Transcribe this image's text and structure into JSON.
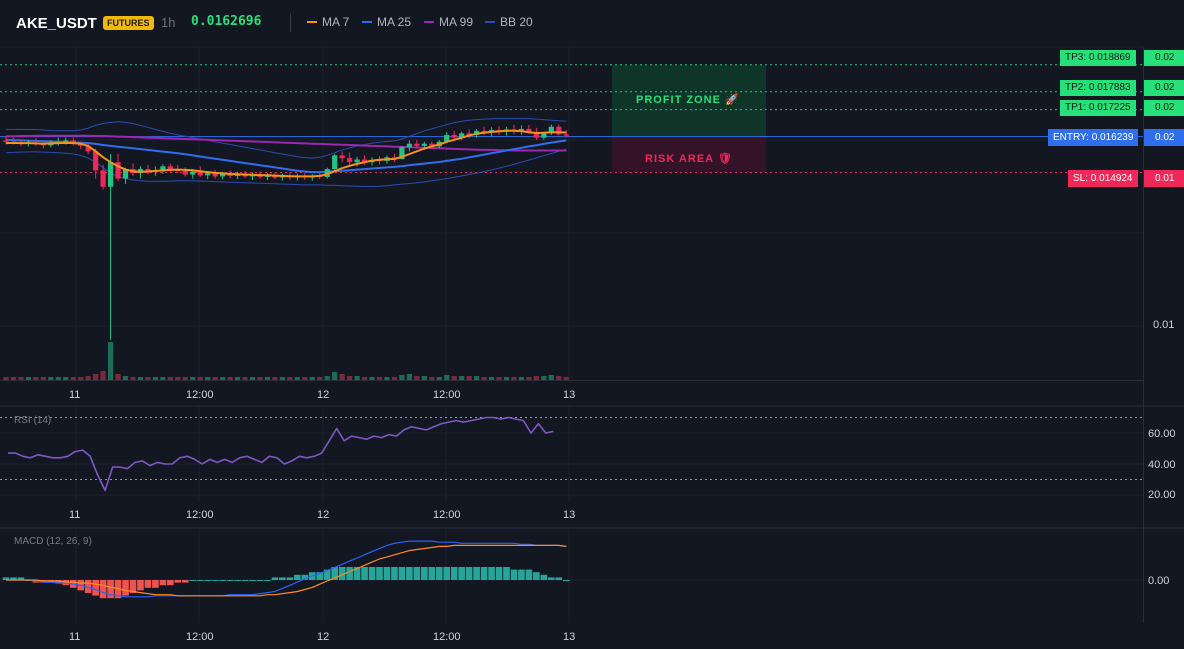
{
  "header": {
    "symbol": "AKE_USDT",
    "badge": "FUTURES",
    "interval": "1h",
    "price": "0.0162696",
    "legend": [
      {
        "label": "MA 7",
        "color": "#f7931a"
      },
      {
        "label": "MA 25",
        "color": "#2f6fed"
      },
      {
        "label": "MA 99",
        "color": "#9c27b0"
      },
      {
        "label": "BB 20",
        "color": "#2a4bb0"
      }
    ]
  },
  "levels": {
    "tp3": {
      "label": "TP3: 0.018869",
      "pct": "0.02"
    },
    "tp2": {
      "label": "TP2: 0.017883",
      "pct": "0.02"
    },
    "tp1": {
      "label": "TP1: 0.017225",
      "pct": "0.02"
    },
    "entry": {
      "label": "ENTRY: 0.016239",
      "pct": "0.02"
    },
    "sl": {
      "label": "SL: 0.014924",
      "pct": "0.01"
    }
  },
  "zones": {
    "profit": "PROFIT ZONE 🚀",
    "risk": "RISK AREA 🛡"
  },
  "colors": {
    "up": "#26c281",
    "down": "#f0285a",
    "bg": "#131722"
  },
  "price_axis": {
    "tick": "0.01"
  },
  "x_axis": [
    "11",
    "12:00",
    "12",
    "12:00",
    "13"
  ],
  "rsi": {
    "title": "RSI (14)",
    "ticks": [
      "60.00",
      "40.00",
      "20.00"
    ]
  },
  "macd": {
    "title": "MACD (12, 26, 9)",
    "ticks": [
      "0.00"
    ]
  },
  "chart_data": [
    {
      "type": "candlestick",
      "title": "AKE_USDT 1h",
      "levels": {
        "tp3": 0.018869,
        "tp2": 0.017883,
        "tp1": 0.017225,
        "entry": 0.016239,
        "sl": 0.014924
      },
      "ohlc": [
        [
          0.0161,
          0.01625,
          0.01595,
          0.01605
        ],
        [
          0.01605,
          0.0162,
          0.01595,
          0.016
        ],
        [
          0.016,
          0.01612,
          0.01588,
          0.01598
        ],
        [
          0.01598,
          0.01612,
          0.01588,
          0.01602
        ],
        [
          0.01602,
          0.01618,
          0.0159,
          0.01596
        ],
        [
          0.01596,
          0.01606,
          0.0158,
          0.01592
        ],
        [
          0.01592,
          0.0161,
          0.01585,
          0.016
        ],
        [
          0.016,
          0.0162,
          0.0159,
          0.01605
        ],
        [
          0.01605,
          0.0162,
          0.01595,
          0.0161
        ],
        [
          0.0161,
          0.0162,
          0.01592,
          0.01598
        ],
        [
          0.01598,
          0.01606,
          0.01578,
          0.0159
        ],
        [
          0.0159,
          0.016,
          0.0156,
          0.0157
        ],
        [
          0.0157,
          0.0158,
          0.0147,
          0.015
        ],
        [
          0.015,
          0.0152,
          0.0143,
          0.0144
        ],
        [
          0.0144,
          0.0156,
          0.0088,
          0.0153
        ],
        [
          0.0153,
          0.0156,
          0.0146,
          0.0147
        ],
        [
          0.0147,
          0.0151,
          0.0145,
          0.01505
        ],
        [
          0.01505,
          0.01525,
          0.0148,
          0.0149
        ],
        [
          0.0149,
          0.01515,
          0.0147,
          0.01505
        ],
        [
          0.01505,
          0.0152,
          0.01485,
          0.01495
        ],
        [
          0.01495,
          0.01515,
          0.0148,
          0.015
        ],
        [
          0.015,
          0.01522,
          0.01488,
          0.01515
        ],
        [
          0.01515,
          0.01525,
          0.01495,
          0.01505
        ],
        [
          0.01505,
          0.0152,
          0.0149,
          0.01498
        ],
        [
          0.01498,
          0.01512,
          0.01478,
          0.01485
        ],
        [
          0.01485,
          0.01505,
          0.0147,
          0.01495
        ],
        [
          0.01495,
          0.01515,
          0.01475,
          0.01482
        ],
        [
          0.01482,
          0.01498,
          0.01468,
          0.0149
        ],
        [
          0.0149,
          0.01502,
          0.0147,
          0.01478
        ],
        [
          0.01478,
          0.01495,
          0.01468,
          0.01488
        ],
        [
          0.01488,
          0.015,
          0.0147,
          0.0148
        ],
        [
          0.0148,
          0.01495,
          0.01468,
          0.01486
        ],
        [
          0.01486,
          0.01498,
          0.01472,
          0.01478
        ],
        [
          0.01478,
          0.01492,
          0.01465,
          0.01484
        ],
        [
          0.01484,
          0.01496,
          0.0147,
          0.01476
        ],
        [
          0.01476,
          0.0149,
          0.01465,
          0.01482
        ],
        [
          0.01482,
          0.01492,
          0.01468,
          0.01474
        ],
        [
          0.01474,
          0.01488,
          0.01462,
          0.0148
        ],
        [
          0.0148,
          0.01492,
          0.01466,
          0.01475
        ],
        [
          0.01475,
          0.01488,
          0.01463,
          0.01478
        ],
        [
          0.01478,
          0.0149,
          0.01465,
          0.01474
        ],
        [
          0.01474,
          0.01486,
          0.01462,
          0.0148
        ],
        [
          0.0148,
          0.01492,
          0.01468,
          0.01476
        ],
        [
          0.01476,
          0.0151,
          0.0147,
          0.01505
        ],
        [
          0.01505,
          0.0156,
          0.015,
          0.01555
        ],
        [
          0.01555,
          0.0157,
          0.0153,
          0.01545
        ],
        [
          0.01545,
          0.01565,
          0.0152,
          0.0153
        ],
        [
          0.0153,
          0.0155,
          0.01515,
          0.0154
        ],
        [
          0.0154,
          0.01555,
          0.0152,
          0.0153
        ],
        [
          0.0153,
          0.01548,
          0.01518,
          0.01538
        ],
        [
          0.01538,
          0.01552,
          0.01522,
          0.01535
        ],
        [
          0.01535,
          0.01555,
          0.01525,
          0.01548
        ],
        [
          0.01548,
          0.0156,
          0.0153,
          0.01542
        ],
        [
          0.01542,
          0.0159,
          0.0154,
          0.01585
        ],
        [
          0.01585,
          0.0161,
          0.0157,
          0.01598
        ],
        [
          0.01598,
          0.01612,
          0.0158,
          0.0159
        ],
        [
          0.0159,
          0.01605,
          0.01575,
          0.01598
        ],
        [
          0.01598,
          0.01606,
          0.0158,
          0.01588
        ],
        [
          0.01588,
          0.01612,
          0.0158,
          0.01605
        ],
        [
          0.01605,
          0.0164,
          0.016,
          0.0163
        ],
        [
          0.0163,
          0.01645,
          0.0161,
          0.0162
        ],
        [
          0.0162,
          0.01642,
          0.01612,
          0.01636
        ],
        [
          0.01636,
          0.0165,
          0.01618,
          0.0163
        ],
        [
          0.0163,
          0.01652,
          0.0162,
          0.01645
        ],
        [
          0.01645,
          0.0166,
          0.01628,
          0.0164
        ],
        [
          0.0164,
          0.01658,
          0.01625,
          0.01648
        ],
        [
          0.01648,
          0.01662,
          0.0163,
          0.01642
        ],
        [
          0.01642,
          0.0166,
          0.01628,
          0.0165
        ],
        [
          0.0165,
          0.01668,
          0.01632,
          0.01645
        ],
        [
          0.01645,
          0.01665,
          0.0163,
          0.01652
        ],
        [
          0.01652,
          0.01666,
          0.01634,
          0.0164
        ],
        [
          0.0164,
          0.01656,
          0.01612,
          0.0162
        ],
        [
          0.0162,
          0.0164,
          0.01612,
          0.01636
        ],
        [
          0.01636,
          0.01668,
          0.0163,
          0.0166
        ],
        [
          0.0166,
          0.01668,
          0.01628,
          0.01632
        ],
        [
          0.01632,
          0.01648,
          0.0162,
          0.01627
        ]
      ],
      "ma7": [
        0.016,
        0.01601,
        0.016,
        0.016,
        0.01599,
        0.01598,
        0.01599,
        0.016,
        0.01601,
        0.016,
        0.01598,
        0.0159,
        0.0157,
        0.01548,
        0.0153,
        0.01515,
        0.01503,
        0.01497,
        0.01495,
        0.01496,
        0.01498,
        0.015,
        0.01502,
        0.01503,
        0.01502,
        0.015,
        0.01497,
        0.01494,
        0.01491,
        0.01489,
        0.01487,
        0.01486,
        0.01485,
        0.01484,
        0.01483,
        0.01482,
        0.01481,
        0.0148,
        0.01479,
        0.01478,
        0.01478,
        0.01478,
        0.0148,
        0.01486,
        0.01497,
        0.01508,
        0.01517,
        0.01524,
        0.0153,
        0.01536,
        0.01539,
        0.01541,
        0.01542,
        0.0155,
        0.0156,
        0.0157,
        0.0158,
        0.01588,
        0.01595,
        0.01605,
        0.01612,
        0.0162,
        0.01628,
        0.01634,
        0.01638,
        0.01641,
        0.01643,
        0.01645,
        0.01645,
        0.01644,
        0.0164,
        0.01637,
        0.01638,
        0.0164,
        0.0164,
        0.01639
      ],
      "ma25": [
        0.01612,
        0.01611,
        0.0161,
        0.01609,
        0.01608,
        0.01607,
        0.01606,
        0.01605,
        0.01604,
        0.01603,
        0.01602,
        0.016,
        0.01597,
        0.01593,
        0.0159,
        0.01587,
        0.01584,
        0.01581,
        0.01578,
        0.01575,
        0.01572,
        0.01569,
        0.01566,
        0.01563,
        0.01559,
        0.01555,
        0.01551,
        0.01547,
        0.01543,
        0.01539,
        0.01535,
        0.01531,
        0.01527,
        0.01523,
        0.01519,
        0.01515,
        0.01511,
        0.01507,
        0.01503,
        0.01499,
        0.01496,
        0.01494,
        0.01494,
        0.01495,
        0.01497,
        0.01499,
        0.01501,
        0.01503,
        0.01505,
        0.01507,
        0.01509,
        0.01511,
        0.01513,
        0.01516,
        0.01519,
        0.01522,
        0.01525,
        0.01528,
        0.01531,
        0.01535,
        0.01539,
        0.01543,
        0.01548,
        0.01553,
        0.01558,
        0.01563,
        0.01568,
        0.01573,
        0.01578,
        0.01583,
        0.01588,
        0.01592,
        0.01597,
        0.01602,
        0.01606,
        0.0161
      ],
      "ma99": [
        0.01625,
        0.01625,
        0.01626,
        0.01626,
        0.01627,
        0.01627,
        0.01627,
        0.01627,
        0.01627,
        0.01627,
        0.01627,
        0.01627,
        0.01626,
        0.01626,
        0.01625,
        0.01624,
        0.01623,
        0.01622,
        0.01621,
        0.0162,
        0.01619,
        0.01618,
        0.01617,
        0.01616,
        0.01615,
        0.01614,
        0.01613,
        0.01612,
        0.01611,
        0.0161,
        0.01609,
        0.01608,
        0.01607,
        0.01606,
        0.01605,
        0.01604,
        0.01603,
        0.01602,
        0.01601,
        0.016,
        0.01599,
        0.01598,
        0.01597,
        0.01596,
        0.01595,
        0.01594,
        0.01593,
        0.01592,
        0.01591,
        0.0159,
        0.01589,
        0.01588,
        0.01587,
        0.01586,
        0.01585,
        0.01584,
        0.01583,
        0.01582,
        0.01581,
        0.0158,
        0.01579,
        0.01578,
        0.01577,
        0.01576,
        0.01575,
        0.01575,
        0.01574,
        0.01574,
        0.01573,
        0.01573,
        0.01573,
        0.01573,
        0.01573,
        0.01573,
        0.01573,
        0.01573
      ],
      "bb_upper": [
        0.0165,
        0.0165,
        0.0165,
        0.0165,
        0.0165,
        0.01648,
        0.01646,
        0.01645,
        0.01645,
        0.01645,
        0.01648,
        0.01655,
        0.01665,
        0.01672,
        0.01676,
        0.01678,
        0.01676,
        0.01672,
        0.01665,
        0.01658,
        0.0165,
        0.01643,
        0.01636,
        0.0163,
        0.01625,
        0.0162,
        0.01615,
        0.0161,
        0.01605,
        0.016,
        0.01595,
        0.0159,
        0.01585,
        0.0158,
        0.01575,
        0.0157,
        0.01565,
        0.0156,
        0.01555,
        0.0155,
        0.01547,
        0.01545,
        0.01548,
        0.01555,
        0.01565,
        0.01575,
        0.01583,
        0.0159,
        0.01595,
        0.016,
        0.01603,
        0.01606,
        0.01608,
        0.01615,
        0.01625,
        0.01635,
        0.01645,
        0.01652,
        0.0166,
        0.01668,
        0.01675,
        0.0168,
        0.01684,
        0.01686,
        0.01688,
        0.01689,
        0.0169,
        0.0169,
        0.0169,
        0.0169,
        0.0169,
        0.01688,
        0.01686,
        0.01684,
        0.01682,
        0.0168
      ],
      "bb_lower": [
        0.01565,
        0.01566,
        0.01567,
        0.01568,
        0.01568,
        0.01567,
        0.01566,
        0.01565,
        0.01563,
        0.0156,
        0.01555,
        0.01545,
        0.0153,
        0.0151,
        0.0149,
        0.01478,
        0.0147,
        0.01465,
        0.01462,
        0.0146,
        0.0146,
        0.0146,
        0.01461,
        0.01462,
        0.01462,
        0.01462,
        0.01461,
        0.0146,
        0.01459,
        0.01458,
        0.01457,
        0.01456,
        0.01455,
        0.01454,
        0.01453,
        0.01452,
        0.01451,
        0.0145,
        0.01449,
        0.01448,
        0.01447,
        0.01447,
        0.01447,
        0.01446,
        0.01445,
        0.01444,
        0.01443,
        0.01442,
        0.01441,
        0.01441,
        0.01442,
        0.01444,
        0.01447,
        0.0145,
        0.01452,
        0.01455,
        0.01458,
        0.01462,
        0.01466,
        0.0147,
        0.01475,
        0.0148,
        0.01485,
        0.0149,
        0.01496,
        0.01502,
        0.01508,
        0.01515,
        0.01522,
        0.0153,
        0.01538,
        0.01546,
        0.01554,
        0.01562,
        0.0157,
        0.01578
      ],
      "volume": [
        3,
        3,
        3,
        3,
        3,
        3,
        3,
        3,
        3,
        3,
        3,
        4,
        6,
        9,
        38,
        6,
        4,
        3,
        3,
        3,
        3,
        3,
        3,
        3,
        3,
        3,
        3,
        3,
        3,
        3,
        3,
        3,
        3,
        3,
        3,
        3,
        3,
        3,
        3,
        3,
        3,
        3,
        3,
        4,
        8,
        6,
        4,
        4,
        3,
        3,
        3,
        3,
        3,
        5,
        6,
        4,
        4,
        3,
        3,
        5,
        4,
        4,
        4,
        4,
        3,
        3,
        3,
        3,
        3,
        3,
        3,
        4,
        4,
        5,
        4,
        3
      ]
    },
    {
      "type": "line",
      "title": "RSI (14)",
      "ylim": [
        15,
        75
      ],
      "values": [
        47,
        47,
        45,
        44,
        46,
        45,
        44,
        44,
        45,
        48,
        49,
        45,
        33,
        23,
        38,
        38,
        37,
        41,
        42,
        39,
        41,
        40,
        40,
        44,
        45,
        43,
        40,
        43,
        41,
        43,
        41,
        44,
        45,
        43,
        41,
        45,
        44,
        40,
        42,
        45,
        44,
        45,
        47,
        55,
        63,
        55,
        58,
        57,
        56,
        58,
        57,
        59,
        58,
        62,
        64,
        63,
        62,
        64,
        66,
        67,
        68,
        67,
        68,
        69,
        70,
        70,
        69,
        70,
        69,
        68,
        60,
        66,
        60,
        61
      ]
    },
    {
      "type": "bar",
      "title": "MACD (12, 26, 9)",
      "histogram": [
        1,
        1,
        1,
        0,
        -1,
        -1,
        -1,
        -1,
        -2,
        -3,
        -4,
        -5,
        -6,
        -7,
        -7,
        -7,
        -6,
        -5,
        -4,
        -3,
        -3,
        -2,
        -2,
        -1,
        -1,
        0,
        0,
        0,
        0,
        0,
        0,
        0,
        0,
        0,
        0,
        0,
        1,
        1,
        1,
        2,
        2,
        3,
        3,
        4,
        5,
        5,
        5,
        5,
        5,
        5,
        5,
        5,
        5,
        5,
        5,
        5,
        5,
        5,
        5,
        5,
        5,
        5,
        5,
        5,
        5,
        5,
        5,
        5,
        4,
        4,
        4,
        3,
        2,
        1,
        1,
        0
      ],
      "macd": [
        0,
        0,
        0,
        0,
        -1,
        -2,
        -2,
        -3,
        -3,
        -4,
        -5,
        -7,
        -9,
        -12,
        -14,
        -15,
        -16,
        -16,
        -16,
        -16,
        -15,
        -15,
        -15,
        -15,
        -15,
        -15,
        -15,
        -15,
        -15,
        -15,
        -14,
        -14,
        -14,
        -14,
        -13,
        -12,
        -11,
        -8,
        -5,
        -2,
        1,
        4,
        6,
        9,
        12,
        15,
        18,
        21,
        24,
        27,
        30,
        33,
        35,
        36,
        37,
        37,
        37,
        37,
        36,
        36,
        36,
        35,
        35,
        35,
        35,
        35,
        35,
        35,
        35,
        34,
        34,
        33,
        33,
        33,
        33,
        32
      ],
      "signal": [
        0,
        0,
        0,
        0,
        0,
        -1,
        -1,
        -1,
        -2,
        -2,
        -3,
        -3,
        -4,
        -5,
        -7,
        -8,
        -10,
        -11,
        -12,
        -13,
        -14,
        -14,
        -14,
        -15,
        -15,
        -15,
        -15,
        -15,
        -15,
        -15,
        -15,
        -15,
        -15,
        -15,
        -15,
        -14,
        -14,
        -13,
        -12,
        -11,
        -9,
        -7,
        -4,
        -1,
        2,
        5,
        8,
        11,
        14,
        17,
        20,
        22,
        24,
        26,
        28,
        29,
        30,
        31,
        32,
        32,
        33,
        33,
        33,
        33,
        33,
        33,
        33,
        33,
        33,
        33,
        33,
        33,
        33,
        33,
        33,
        32
      ]
    }
  ]
}
